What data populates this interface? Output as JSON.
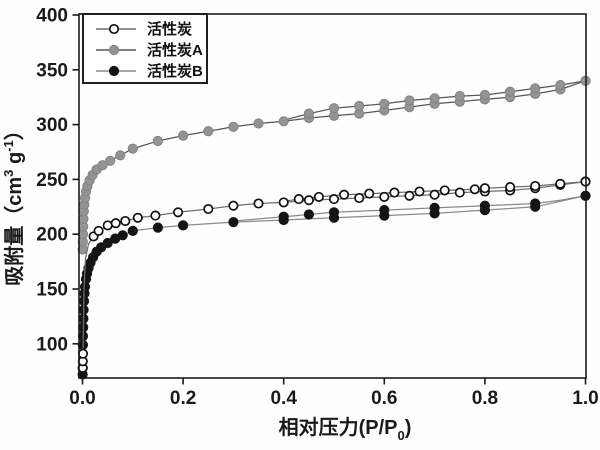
{
  "chart_data": {
    "type": "line",
    "title": "",
    "grid": false,
    "legend_position": "upper-left",
    "xlabel": {
      "text": "相对压力(P/P0)",
      "prefix": "相对压力(P/P",
      "sub": "0",
      "suffix": ")"
    },
    "ylabel": {
      "text": "吸附量（cm3 g-1）",
      "prefix": "吸附量（cm",
      "sup1": "3",
      "mid": " g",
      "sup2": "-1",
      "suffix": "）"
    },
    "xlim": [
      0,
      1.0
    ],
    "ylim": [
      70,
      400
    ],
    "xticks": [
      {
        "value": 0.0,
        "label": "0.0"
      },
      {
        "value": 0.2,
        "label": "0.2"
      },
      {
        "value": 0.4,
        "label": "0.4"
      },
      {
        "value": 0.6,
        "label": "0.6"
      },
      {
        "value": 0.8,
        "label": "0.8"
      },
      {
        "value": 1.0,
        "label": "1.0"
      }
    ],
    "yticks": [
      {
        "value": 100,
        "label": "100"
      },
      {
        "value": 150,
        "label": "150"
      },
      {
        "value": 200,
        "label": "200"
      },
      {
        "value": 250,
        "label": "250"
      },
      {
        "value": 300,
        "label": "300"
      },
      {
        "value": 350,
        "label": "350"
      },
      {
        "value": 400,
        "label": "400"
      }
    ],
    "draw_order": [
      1,
      2,
      0
    ],
    "series": [
      {
        "id": "huoxingtan",
        "name": "活性炭",
        "marker": "open-circle",
        "marker_fill": "#ffffff",
        "marker_edge": "#111111",
        "line_color": "#6e6e6e",
        "branches": {
          "adsorption": [
            [
              0.0004,
              78
            ],
            [
              0.0006,
              84
            ],
            [
              0.001,
              91
            ],
            [
              0.003,
              150,
              0
            ],
            [
              0.006,
              178,
              0
            ],
            [
              0.012,
              191,
              0
            ],
            [
              0.022,
              198
            ],
            [
              0.032,
              203
            ],
            [
              0.05,
              208
            ],
            [
              0.066,
              210
            ],
            [
              0.085,
              212
            ],
            [
              0.11,
              215
            ],
            [
              0.145,
              217
            ],
            [
              0.19,
              220
            ],
            [
              0.25,
              223
            ],
            [
              0.3,
              226
            ],
            [
              0.35,
              228
            ],
            [
              0.4,
              229
            ],
            [
              0.45,
              231
            ],
            [
              0.5,
              232
            ],
            [
              0.55,
              233
            ],
            [
              0.6,
              234
            ],
            [
              0.65,
              235
            ],
            [
              0.7,
              236
            ],
            [
              0.75,
              238
            ],
            [
              0.8,
              239
            ],
            [
              0.85,
              240
            ],
            [
              0.9,
              242
            ],
            [
              0.95,
              245
            ],
            [
              1.0,
              248
            ]
          ],
          "desorption": [
            [
              1.0,
              248
            ],
            [
              0.95,
              246
            ],
            [
              0.9,
              244
            ],
            [
              0.85,
              243
            ],
            [
              0.8,
              242
            ],
            [
              0.78,
              241
            ],
            [
              0.72,
              240
            ],
            [
              0.67,
              239
            ],
            [
              0.62,
              238
            ],
            [
              0.57,
              237
            ],
            [
              0.52,
              236
            ],
            [
              0.47,
              234
            ],
            [
              0.43,
              232
            ],
            [
              0.4,
              230,
              0
            ]
          ]
        }
      },
      {
        "id": "huoxingtan-a",
        "name": "活性炭A",
        "marker": "filled-circle",
        "marker_fill": "#949494",
        "marker_edge": "#818181",
        "line_color": "#565656",
        "branches": {
          "adsorption": [
            [
              0.0004,
              186
            ],
            [
              0.0006,
              193
            ],
            [
              0.0009,
              200
            ],
            [
              0.0013,
              207
            ],
            [
              0.0018,
              214
            ],
            [
              0.0025,
              221
            ],
            [
              0.0035,
              227
            ],
            [
              0.005,
              233
            ],
            [
              0.007,
              239
            ],
            [
              0.01,
              244
            ],
            [
              0.014,
              249
            ],
            [
              0.02,
              254
            ],
            [
              0.028,
              259
            ],
            [
              0.04,
              263
            ],
            [
              0.055,
              267
            ],
            [
              0.075,
              272
            ],
            [
              0.1,
              278
            ],
            [
              0.15,
              285
            ],
            [
              0.2,
              290
            ],
            [
              0.25,
              294
            ],
            [
              0.3,
              298
            ],
            [
              0.35,
              301
            ],
            [
              0.4,
              303
            ],
            [
              0.45,
              306
            ],
            [
              0.5,
              308
            ],
            [
              0.55,
              310
            ],
            [
              0.6,
              313
            ],
            [
              0.65,
              316
            ],
            [
              0.7,
              319
            ],
            [
              0.75,
              321
            ],
            [
              0.8,
              323
            ],
            [
              0.85,
              325
            ],
            [
              0.9,
              328
            ],
            [
              0.95,
              332
            ],
            [
              1.0,
              340
            ]
          ],
          "desorption": [
            [
              1.0,
              340
            ],
            [
              0.95,
              336
            ],
            [
              0.9,
              333
            ],
            [
              0.85,
              330
            ],
            [
              0.8,
              327
            ],
            [
              0.75,
              326
            ],
            [
              0.7,
              324
            ],
            [
              0.65,
              322
            ],
            [
              0.6,
              319
            ],
            [
              0.55,
              317
            ],
            [
              0.5,
              315
            ],
            [
              0.45,
              310
            ],
            [
              0.4,
              304,
              0
            ]
          ]
        }
      },
      {
        "id": "huoxingtan-b",
        "name": "活性炭B",
        "marker": "filled-circle",
        "marker_fill": "#141414",
        "marker_edge": "#141414",
        "line_color": "#8a8a8a",
        "branches": {
          "adsorption": [
            [
              0.0002,
              72
            ],
            [
              0.0003,
              78
            ],
            [
              0.0005,
              88,
              0
            ],
            [
              0.0007,
              99
            ],
            [
              0.001,
              107
            ],
            [
              0.0013,
              115
            ],
            [
              0.0017,
              123
            ],
            [
              0.0022,
              131
            ],
            [
              0.003,
              139
            ],
            [
              0.004,
              146
            ],
            [
              0.005,
              152
            ],
            [
              0.007,
              159
            ],
            [
              0.009,
              164
            ],
            [
              0.012,
              169
            ],
            [
              0.016,
              174
            ],
            [
              0.021,
              179
            ],
            [
              0.028,
              184
            ],
            [
              0.037,
              188
            ],
            [
              0.05,
              192
            ],
            [
              0.065,
              196
            ],
            [
              0.08,
              199
            ],
            [
              0.1,
              203
            ],
            [
              0.15,
              206
            ],
            [
              0.2,
              208
            ],
            [
              0.3,
              211
            ],
            [
              0.4,
              213
            ],
            [
              0.5,
              215
            ],
            [
              0.6,
              217
            ],
            [
              0.7,
              219
            ],
            [
              0.8,
              222
            ],
            [
              0.9,
              225
            ],
            [
              1.0,
              235
            ]
          ],
          "desorption": [
            [
              1.0,
              235
            ],
            [
              0.95,
              231,
              0
            ],
            [
              0.9,
              228
            ],
            [
              0.8,
              226
            ],
            [
              0.7,
              224
            ],
            [
              0.6,
              222
            ],
            [
              0.5,
              220
            ],
            [
              0.45,
              218
            ],
            [
              0.4,
              216
            ],
            [
              0.35,
              214,
              0
            ],
            [
              0.3,
              212,
              0
            ]
          ]
        }
      }
    ]
  },
  "colors": {
    "axis": "#1a1a1a",
    "background": "#ffffff"
  }
}
